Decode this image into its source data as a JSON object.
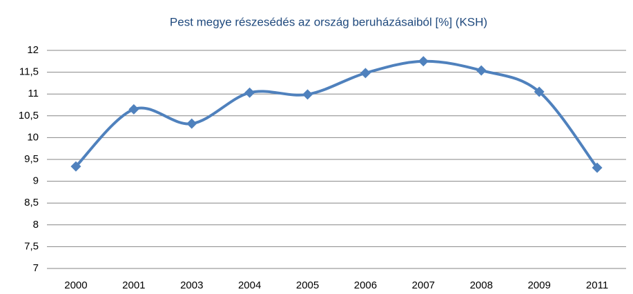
{
  "chart_data": {
    "type": "line",
    "title": "Pest megye részesédés az ország beruházásaiból [%] (KSH)",
    "categories": [
      "2000",
      "2001",
      "2003",
      "2004",
      "2005",
      "2006",
      "2007",
      "2008",
      "2009",
      "2011"
    ],
    "series": [
      {
        "name": "Pest megye",
        "color": "#4f81bd",
        "values": [
          9.34,
          10.65,
          10.32,
          11.03,
          10.99,
          11.48,
          11.75,
          11.54,
          11.05,
          9.31
        ]
      }
    ],
    "ylim": [
      7,
      12
    ],
    "yticks": [
      7,
      {
        "value": 7.5,
        "label": "7,5"
      },
      8,
      {
        "value": 8.5,
        "label": "8,5"
      },
      9,
      {
        "value": 9.5,
        "label": "9,5"
      },
      10,
      {
        "value": 10.5,
        "label": "10,5"
      },
      11,
      {
        "value": 11.5,
        "label": "11,5"
      },
      12
    ],
    "grid": true,
    "smooth": true,
    "legend": false
  }
}
